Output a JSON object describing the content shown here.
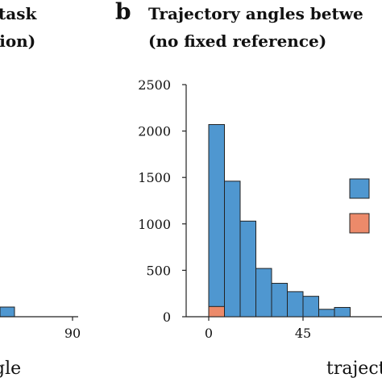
{
  "left_panel": {
    "title_line1": "task",
    "title_line2": "tion)",
    "xtick_90": "90",
    "xlabel_fragment": "gle",
    "bar_color": "#4f97d0"
  },
  "chart_data": {
    "type": "bar",
    "panel_letter": "b",
    "title_line1": "Trajectory angles betwe",
    "title_line2": "(no fixed reference)",
    "xlabel": "trajecto",
    "ylim": [
      0,
      2500
    ],
    "yticks": [
      0,
      500,
      1000,
      1500,
      2000,
      2500
    ],
    "xticks": [
      0,
      45
    ],
    "bin_width": 7.5,
    "colors": {
      "blue": "#4f97d0",
      "orange": "#ec8a6a"
    },
    "series": [
      {
        "color": "blue",
        "bins": [
          0,
          7.5,
          15,
          22.5,
          30,
          37.5,
          45,
          52.5,
          60,
          67.5
        ],
        "values": [
          2070,
          1460,
          1030,
          520,
          360,
          270,
          220,
          80,
          100,
          0
        ]
      },
      {
        "color": "orange",
        "bins": [
          0
        ],
        "values": [
          110
        ]
      }
    ],
    "legend": {
      "placement": "right",
      "swatch_colors": [
        "blue",
        "orange"
      ]
    }
  }
}
